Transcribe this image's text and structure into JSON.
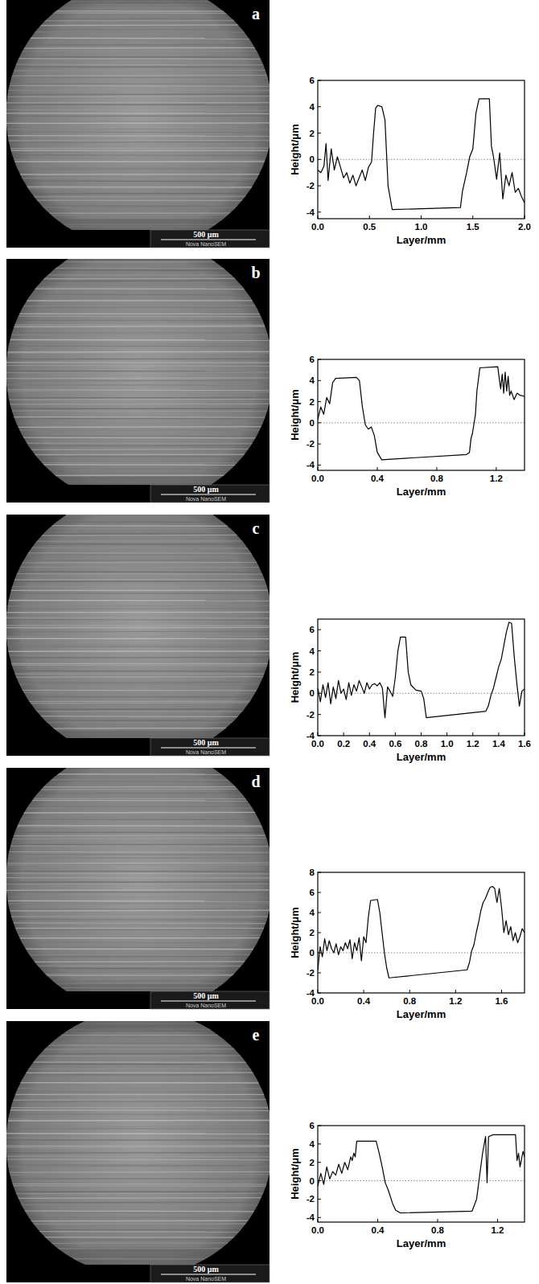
{
  "images": [
    {
      "label": "a",
      "scale_bar": "500 μm",
      "instrument": "Nova NanoSEM"
    },
    {
      "label": "b",
      "scale_bar": "500 μm",
      "instrument": "Nova NanoSEM"
    },
    {
      "label": "c",
      "scale_bar": "500 μm",
      "instrument": "Nova NanoSEM"
    },
    {
      "label": "d",
      "scale_bar": "500 μm",
      "instrument": "Nova NanoSEM"
    },
    {
      "label": "e",
      "scale_bar": "500 μm",
      "instrument": "Nova NanoSEM"
    }
  ],
  "chart_data": [
    {
      "type": "line",
      "x_label": "Layer/mm",
      "y_label": "Height/μm",
      "color": "#000000",
      "hline": 0,
      "xlim": [
        0,
        2.0
      ],
      "ylim": [
        -4.5,
        6
      ],
      "xticks": [
        {
          "value": 0,
          "label": "0.0"
        },
        {
          "value": 0.5,
          "label": "0.5"
        },
        {
          "value": 1,
          "label": "1.0"
        },
        {
          "value": 1.5,
          "label": "1.5"
        },
        {
          "value": 2,
          "label": "2.0"
        }
      ],
      "yticks": [
        -4,
        -2,
        0,
        2,
        4,
        6
      ],
      "x": [
        0,
        0.03,
        0.06,
        0.08,
        0.1,
        0.13,
        0.16,
        0.19,
        0.22,
        0.25,
        0.28,
        0.31,
        0.34,
        0.37,
        0.4,
        0.43,
        0.46,
        0.49,
        0.52,
        0.54,
        0.56,
        0.58,
        0.62,
        0.65,
        0.68,
        0.72,
        1.0,
        1.38,
        1.4,
        1.44,
        1.47,
        1.5,
        1.53,
        1.56,
        1.66,
        1.68,
        1.7,
        1.73,
        1.76,
        1.79,
        1.82,
        1.85,
        1.88,
        1.91,
        1.94,
        1.97,
        2.0
      ],
      "values": [
        -0.8,
        -1.0,
        -0.5,
        1.2,
        -1.6,
        0.8,
        -0.8,
        0.2,
        -0.6,
        -1.4,
        -1.0,
        -1.8,
        -1.2,
        -2.0,
        -1.4,
        -0.8,
        -1.6,
        -0.6,
        -0.2,
        2.0,
        3.9,
        4.1,
        4.0,
        3.0,
        -2.0,
        -3.8,
        -3.75,
        -3.65,
        -2.4,
        -1.0,
        0.2,
        0.8,
        3.5,
        4.6,
        4.6,
        1.0,
        0.2,
        -1.5,
        0.5,
        -3.0,
        -1.2,
        -2.0,
        -1.0,
        -2.5,
        -2.2,
        -2.8,
        -3.3
      ]
    },
    {
      "type": "line",
      "x_label": "Layer/mm",
      "y_label": "Height/μm",
      "color": "#000000",
      "hline": 0,
      "xlim": [
        0,
        1.39
      ],
      "ylim": [
        -4.5,
        6
      ],
      "xticks": [
        {
          "value": 0,
          "label": "0.0"
        },
        {
          "value": 0.4,
          "label": "0.4"
        },
        {
          "value": 0.8,
          "label": "0.8"
        },
        {
          "value": 1.2,
          "label": "1.2"
        }
      ],
      "yticks": [
        -4,
        -2,
        0,
        2,
        4,
        6
      ],
      "x": [
        0,
        0.02,
        0.04,
        0.06,
        0.08,
        0.1,
        0.12,
        0.26,
        0.28,
        0.3,
        0.32,
        0.34,
        0.36,
        0.38,
        0.4,
        0.43,
        1.0,
        1.02,
        1.03,
        1.04,
        1.06,
        1.07,
        1.09,
        1.21,
        1.22,
        1.23,
        1.24,
        1.25,
        1.26,
        1.27,
        1.28,
        1.29,
        1.3,
        1.32,
        1.34,
        1.36,
        1.39
      ],
      "values": [
        0.3,
        1.5,
        0.8,
        2.4,
        1.8,
        3.8,
        4.2,
        4.3,
        4.0,
        1.5,
        -0.2,
        -0.6,
        -0.4,
        -1.2,
        -2.8,
        -3.5,
        -3.0,
        -2.8,
        -1.5,
        -1.0,
        0.8,
        3.0,
        5.2,
        5.3,
        4.2,
        3.2,
        4.6,
        2.8,
        4.8,
        3.0,
        4.4,
        2.6,
        3.0,
        2.2,
        2.8,
        2.6,
        2.5
      ]
    },
    {
      "type": "line",
      "x_label": "Layer/mm",
      "y_label": "Height/μm",
      "color": "#000000",
      "hline": 0,
      "xlim": [
        0,
        1.6
      ],
      "ylim": [
        -4,
        7
      ],
      "xticks": [
        {
          "value": 0,
          "label": "0.0"
        },
        {
          "value": 0.2,
          "label": "0.2"
        },
        {
          "value": 0.4,
          "label": "0.4"
        },
        {
          "value": 0.6,
          "label": "0.6"
        },
        {
          "value": 0.8,
          "label": "0.8"
        },
        {
          "value": 1,
          "label": "1.0"
        },
        {
          "value": 1.2,
          "label": "1.2"
        },
        {
          "value": 1.4,
          "label": "1.4"
        },
        {
          "value": 1.6,
          "label": "1.6"
        }
      ],
      "yticks": [
        -4,
        -2,
        0,
        2,
        4,
        6
      ],
      "x": [
        0,
        0.02,
        0.04,
        0.06,
        0.08,
        0.1,
        0.12,
        0.14,
        0.16,
        0.18,
        0.2,
        0.22,
        0.24,
        0.26,
        0.28,
        0.3,
        0.32,
        0.34,
        0.36,
        0.38,
        0.4,
        0.42,
        0.44,
        0.46,
        0.48,
        0.5,
        0.52,
        0.54,
        0.56,
        0.58,
        0.6,
        0.62,
        0.64,
        0.68,
        0.7,
        0.72,
        0.76,
        0.8,
        0.82,
        0.84,
        1.3,
        1.32,
        1.34,
        1.36,
        1.38,
        1.4,
        1.42,
        1.44,
        1.46,
        1.48,
        1.5,
        1.52,
        1.54,
        1.56,
        1.58,
        1.6
      ],
      "values": [
        0.5,
        -0.8,
        0.8,
        -0.4,
        1.0,
        -1.0,
        0.6,
        -0.5,
        1.2,
        0.0,
        0.4,
        -0.6,
        1.0,
        -0.2,
        0.8,
        0.2,
        1.2,
        0.6,
        0.0,
        1.0,
        0.4,
        0.8,
        0.9,
        0.7,
        1.0,
        0.5,
        -2.3,
        0.6,
        0.2,
        -0.3,
        1.5,
        4.0,
        5.3,
        5.3,
        2.0,
        0.8,
        0.3,
        0.2,
        -0.5,
        -2.3,
        -1.7,
        -1.2,
        -0.2,
        0.5,
        1.5,
        2.5,
        3.2,
        4.5,
        5.8,
        6.7,
        6.6,
        3.5,
        1.0,
        -1.2,
        0.2,
        0.4
      ]
    },
    {
      "type": "line",
      "x_label": "Layer/mm",
      "y_label": "Height/μm",
      "color": "#000000",
      "hline": 0,
      "xlim": [
        0,
        1.8
      ],
      "ylim": [
        -4,
        8
      ],
      "xticks": [
        {
          "value": 0,
          "label": "0.0"
        },
        {
          "value": 0.4,
          "label": "0.4"
        },
        {
          "value": 0.8,
          "label": "0.8"
        },
        {
          "value": 1.2,
          "label": "1.2"
        },
        {
          "value": 1.6,
          "label": "1.6"
        }
      ],
      "yticks": [
        -4,
        -2,
        0,
        2,
        4,
        6,
        8
      ],
      "x": [
        0,
        0.02,
        0.04,
        0.06,
        0.08,
        0.1,
        0.12,
        0.14,
        0.16,
        0.18,
        0.2,
        0.22,
        0.24,
        0.26,
        0.28,
        0.3,
        0.32,
        0.34,
        0.36,
        0.38,
        0.4,
        0.42,
        0.44,
        0.46,
        0.52,
        0.54,
        0.56,
        0.58,
        0.6,
        0.62,
        1.3,
        1.32,
        1.34,
        1.36,
        1.38,
        1.4,
        1.42,
        1.44,
        1.46,
        1.48,
        1.5,
        1.52,
        1.54,
        1.56,
        1.58,
        1.6,
        1.62,
        1.64,
        1.66,
        1.68,
        1.7,
        1.72,
        1.74,
        1.76,
        1.78,
        1.8
      ],
      "values": [
        -1.8,
        0.6,
        -0.4,
        1.4,
        0.2,
        1.2,
        0.4,
        0.0,
        0.9,
        -0.2,
        0.6,
        0.2,
        1.0,
        0.4,
        1.3,
        -0.6,
        1.0,
        0.2,
        1.5,
        -0.8,
        1.6,
        1.0,
        3.5,
        5.2,
        5.3,
        4.0,
        2.0,
        0.0,
        -1.5,
        -2.5,
        -1.7,
        -1.0,
        0.2,
        0.8,
        2.0,
        3.0,
        4.2,
        5.0,
        5.4,
        6.0,
        6.5,
        6.6,
        6.4,
        5.0,
        6.4,
        4.5,
        2.0,
        3.2,
        1.8,
        2.6,
        1.2,
        2.0,
        1.0,
        1.6,
        2.4,
        2.0
      ]
    },
    {
      "type": "line",
      "x_label": "Layer/mm",
      "y_label": "Height/μm",
      "color": "#000000",
      "hline": 0,
      "xlim": [
        0,
        1.38
      ],
      "ylim": [
        -4.5,
        6
      ],
      "xticks": [
        {
          "value": 0,
          "label": "0.0"
        },
        {
          "value": 0.4,
          "label": "0.4"
        },
        {
          "value": 0.8,
          "label": "0.8"
        },
        {
          "value": 1.2,
          "label": "1.2"
        }
      ],
      "yticks": [
        -4,
        -2,
        0,
        2,
        4,
        6
      ],
      "x": [
        0,
        0.02,
        0.04,
        0.06,
        0.08,
        0.1,
        0.12,
        0.14,
        0.16,
        0.18,
        0.2,
        0.22,
        0.23,
        0.24,
        0.25,
        0.26,
        0.39,
        0.41,
        0.43,
        0.45,
        0.47,
        0.5,
        0.52,
        0.55,
        1.03,
        1.06,
        1.08,
        1.1,
        1.12,
        1.13,
        1.14,
        1.17,
        1.32,
        1.33,
        1.34,
        1.35,
        1.37,
        1.38
      ],
      "values": [
        -0.6,
        0.8,
        -0.4,
        1.5,
        0.2,
        1.0,
        0.6,
        1.8,
        0.8,
        2.0,
        1.2,
        2.6,
        2.2,
        3.0,
        2.6,
        4.3,
        4.3,
        3.0,
        1.5,
        -0.2,
        -1.0,
        -2.5,
        -3.2,
        -3.5,
        -3.3,
        -2.0,
        0.5,
        3.0,
        4.8,
        -0.2,
        4.8,
        5.0,
        5.0,
        2.2,
        3.0,
        1.5,
        3.2,
        2.6
      ]
    }
  ]
}
